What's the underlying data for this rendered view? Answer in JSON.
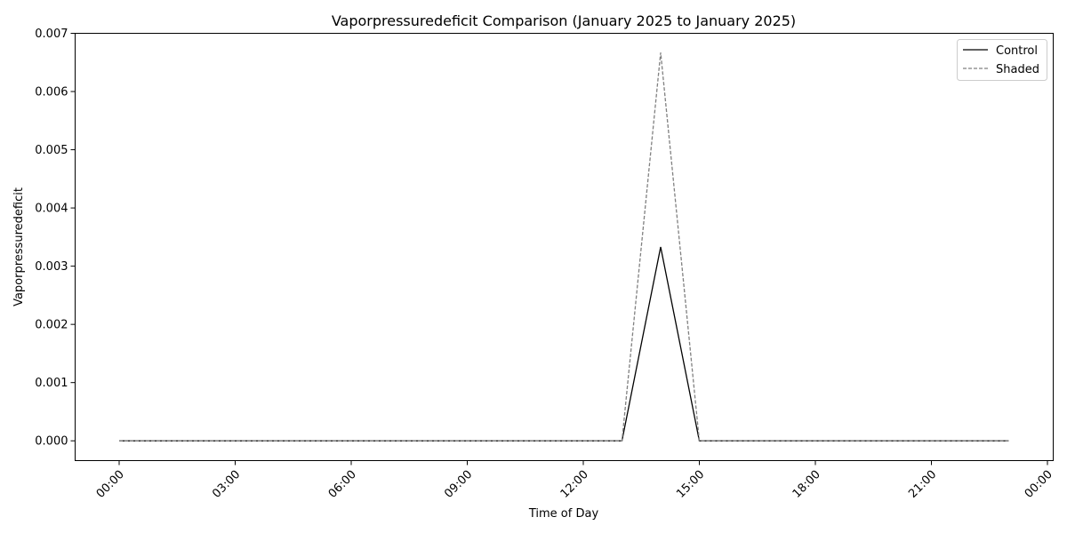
{
  "chart_data": {
    "type": "line",
    "title": "Vaporpressuredeficit Comparison (January 2025 to January 2025)",
    "xlabel": "Time of Day",
    "ylabel": "Vaporpressuredeficit",
    "x": [
      "00:00",
      "01:00",
      "02:00",
      "03:00",
      "04:00",
      "05:00",
      "06:00",
      "07:00",
      "08:00",
      "09:00",
      "10:00",
      "11:00",
      "12:00",
      "13:00",
      "14:00",
      "15:00",
      "16:00",
      "17:00",
      "18:00",
      "19:00",
      "20:00",
      "21:00",
      "22:00",
      "23:00"
    ],
    "x_tick_labels": [
      "00:00",
      "03:00",
      "06:00",
      "09:00",
      "12:00",
      "15:00",
      "18:00",
      "21:00",
      "00:00"
    ],
    "y_tick_labels": [
      "0.000",
      "0.001",
      "0.002",
      "0.003",
      "0.004",
      "0.005",
      "0.006",
      "0.007"
    ],
    "ylim": [
      -0.00034,
      0.007
    ],
    "grid": false,
    "legend_position": "top-right",
    "series": [
      {
        "name": "Control",
        "color": "#000000",
        "style": "solid",
        "values": [
          0,
          0,
          0,
          0,
          0,
          0,
          0,
          0,
          0,
          0,
          0,
          0,
          0,
          0,
          0.00333,
          0,
          0,
          0,
          0,
          0,
          0,
          0,
          0,
          0
        ]
      },
      {
        "name": "Shaded",
        "color": "#808080",
        "style": "dashed",
        "values": [
          0,
          0,
          0,
          0,
          0,
          0,
          0,
          0,
          0,
          0,
          0,
          0,
          0,
          0,
          0.00667,
          0,
          0,
          0,
          0,
          0,
          0,
          0,
          0,
          0
        ]
      }
    ]
  }
}
